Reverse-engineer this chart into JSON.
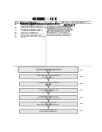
{
  "bg_color": "#ffffff",
  "text_color": "#000000",
  "arrow_color": "#555555",
  "box_facecolor": "#e8e8e8",
  "box_edgecolor": "#666666",
  "line_color": "#888888",
  "flow_boxes": [
    "Mix chloronitrobenzene with\nmodified montmorillonite clay",
    "Add platinum nanoparticles\nto the mixture",
    "Stir and heat the catalyst\nmixture",
    "Introduce hydrogen gas\ninto reaction",
    "Separate catalyst and\nrecover product and solvent",
    "Purify product via\nrecrystallization/distillation",
    "Collect final reduced\nchloroaniline product"
  ],
  "step_labels": [
    "S101",
    "S103",
    "S105",
    "S107",
    "S109",
    "S111",
    "S113"
  ],
  "abstract_lines": [
    "A process for reducing chloroni-",
    "trobenzene using platinum nano-",
    "particles stabilized on modified",
    "montmorillonite clay is provided.",
    "The process comprises mixing the",
    "substrate with the clay-supported",
    "catalyst, introducing hydrogen",
    "gas, and recovering the chloro-",
    "aniline product. The catalyst",
    "shows high selectivity and can",
    "be reused multiple times without",
    "significant loss of performance."
  ],
  "meta_lines": [
    [
      "(54)",
      "PROCESS FOR REDUCING CHLORO-"
    ],
    [
      "",
      "NITROBENZENE CATALYZED BY"
    ],
    [
      "",
      "PLATINUM-NANOPARTICLES"
    ],
    [
      "(75)",
      "Inventors: Chen Wu, Beijing (CN);"
    ],
    [
      "",
      "Li Zhang, Shanghai (CN)"
    ],
    [
      "(73)",
      "Assignee: Research Institute"
    ],
    [
      "",
      "of Chemical Technology"
    ],
    [
      "(21)",
      "Appl. No.: 12/345,678"
    ],
    [
      "(22)",
      "Filed: Dec. 15, 2010"
    ],
    [
      "",
      "Related U.S. Application Data"
    ],
    [
      "(60)",
      "Provisional application No."
    ],
    [
      "",
      "61/234,567, filed Dec. 16, 2009."
    ],
    [
      "(51)",
      "Int. Cl."
    ]
  ]
}
